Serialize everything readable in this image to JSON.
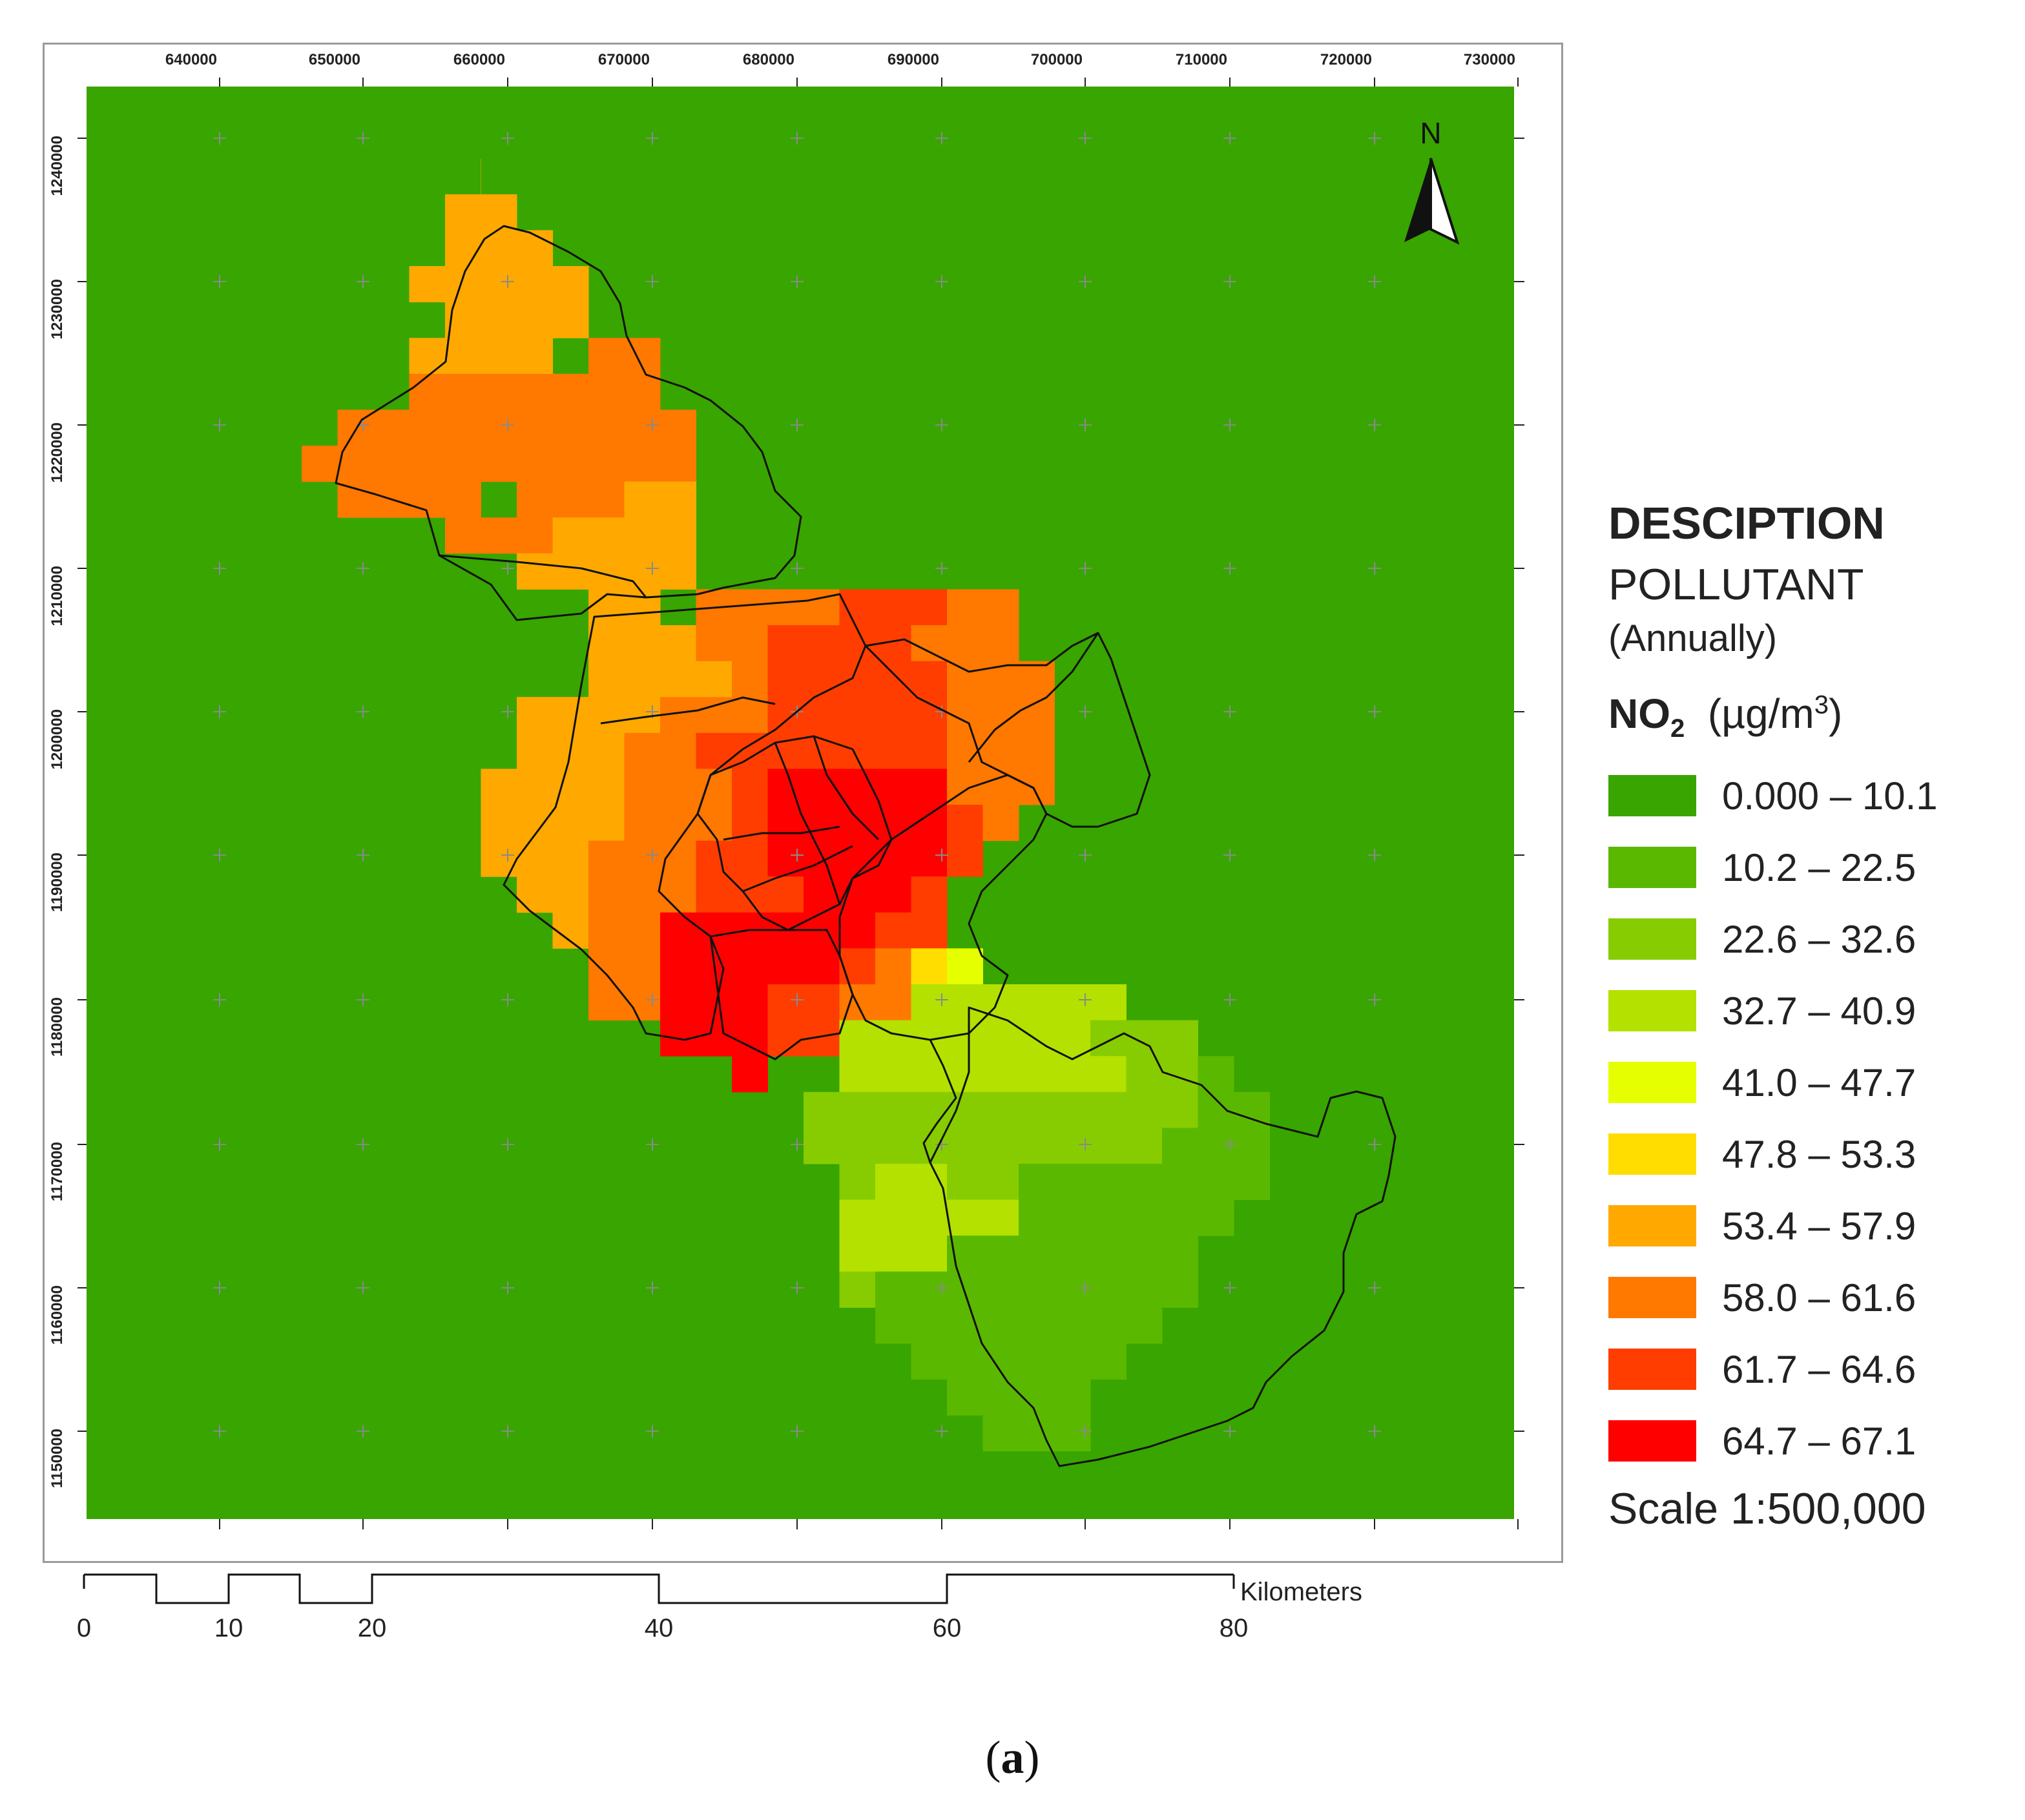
{
  "map": {
    "x_ticks": [
      "640000",
      "650000",
      "660000",
      "670000",
      "680000",
      "690000",
      "700000",
      "710000",
      "720000",
      "730000"
    ],
    "y_ticks": [
      "1240000",
      "1230000",
      "1220000",
      "1210000",
      "1200000",
      "1190000",
      "1180000",
      "1170000",
      "1160000",
      "1150000"
    ],
    "background_color": "#38a500",
    "north_label": "N"
  },
  "scale_bar": {
    "labels": [
      "0",
      "10",
      "20",
      "40",
      "60",
      "80"
    ],
    "unit": "Kilometers"
  },
  "legend": {
    "heading": "DESCIPTION",
    "subtitle": "POLLUTANT",
    "period": "(Annually)",
    "pollutant": "NO",
    "pollutant_sub": "2",
    "unit_prefix": "(µg/m",
    "unit_sup": "3",
    "unit_suffix": ")",
    "classes": [
      {
        "label": "0.000 – 10.1",
        "color": "#38a500"
      },
      {
        "label": "10.2 – 22.5",
        "color": "#5bb800"
      },
      {
        "label": "22.6 – 32.6",
        "color": "#87cc00"
      },
      {
        "label": "32.7 – 40.9",
        "color": "#b4e100"
      },
      {
        "label": "41.0 – 47.7",
        "color": "#e5ff00"
      },
      {
        "label": "47.8 – 53.3",
        "color": "#ffdd00"
      },
      {
        "label": "53.4 – 57.9",
        "color": "#ffa900"
      },
      {
        "label": "58.0 – 61.6",
        "color": "#ff7800"
      },
      {
        "label": "61.7 – 64.6",
        "color": "#ff3d00"
      },
      {
        "label": "64.7 – 67.1",
        "color": "#ff0000"
      }
    ],
    "scale_text": "Scale 1:500,000"
  },
  "caption": {
    "open": "(",
    "letter": "a",
    "close": ")"
  }
}
